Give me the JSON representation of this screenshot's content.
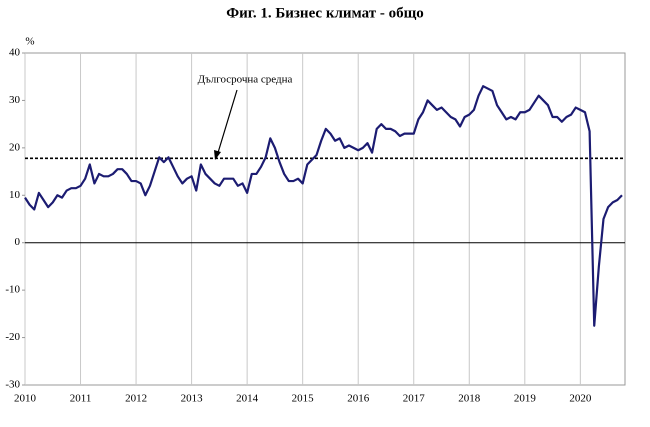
{
  "chart_data": {
    "type": "line",
    "title": "Фиг. 1. Бизнес климат - общо",
    "y_unit": "%",
    "categories": [
      "2010",
      null,
      null,
      null,
      null,
      null,
      null,
      null,
      null,
      null,
      null,
      null,
      "2011",
      null,
      null,
      null,
      null,
      null,
      null,
      null,
      null,
      null,
      null,
      null,
      "2012",
      null,
      null,
      null,
      null,
      null,
      null,
      null,
      null,
      null,
      null,
      null,
      "2013",
      null,
      null,
      null,
      null,
      null,
      null,
      null,
      null,
      null,
      null,
      null,
      "2014",
      null,
      null,
      null,
      null,
      null,
      null,
      null,
      null,
      null,
      null,
      null,
      "2015",
      null,
      null,
      null,
      null,
      null,
      null,
      null,
      null,
      null,
      null,
      null,
      "2016",
      null,
      null,
      null,
      null,
      null,
      null,
      null,
      null,
      null,
      null,
      null,
      "2017",
      null,
      null,
      null,
      null,
      null,
      null,
      null,
      null,
      null,
      null,
      null,
      "2018",
      null,
      null,
      null,
      null,
      null,
      null,
      null,
      null,
      null,
      null,
      null,
      "2019",
      null,
      null,
      null,
      null,
      null,
      null,
      null,
      null,
      null,
      null,
      null,
      "2020",
      null,
      null,
      null,
      null,
      null,
      null,
      null,
      null,
      null
    ],
    "series": [
      {
        "color": "#1c1c72",
        "values": [
          9.5,
          8,
          7,
          10.5,
          9,
          7.5,
          8.5,
          10,
          9.5,
          11,
          11.5,
          11.5,
          12,
          13.5,
          16.5,
          12.5,
          14.5,
          14,
          14,
          14.5,
          15.5,
          15.5,
          14.5,
          13,
          13,
          12.5,
          10,
          12,
          15,
          18,
          17,
          18,
          16,
          14,
          12.5,
          13.5,
          14,
          11,
          16.5,
          14.5,
          13.5,
          12.5,
          12,
          13.5,
          13.5,
          13.5,
          12,
          12.5,
          10.5,
          14.5,
          14.5,
          16,
          18,
          22,
          20,
          17,
          14.5,
          13,
          13,
          13.5,
          12.5,
          16.5,
          17.5,
          18.5,
          21.5,
          24,
          23,
          21.5,
          22,
          20,
          20.5,
          20,
          19.5,
          20,
          21,
          19,
          24,
          25,
          24,
          24,
          23.5,
          22.5,
          23,
          23,
          23,
          26,
          27.5,
          30,
          29,
          28,
          28.5,
          27.5,
          26.5,
          26,
          24.5,
          26.5,
          27,
          28,
          31,
          33,
          32.5,
          32,
          29,
          27.5,
          26,
          26.5,
          26,
          27.5,
          27.5,
          28,
          29.5,
          31,
          30,
          29,
          26.5,
          26.5,
          25.5,
          26.5,
          27,
          28.5,
          28,
          27.5,
          23.5,
          -17.5,
          -5,
          5,
          7.5,
          8.5,
          9,
          10
        ]
      }
    ],
    "reference_line": {
      "value": 17.8,
      "label": "Дългосрочна средна"
    },
    "ylim": [
      -30,
      40
    ],
    "yticks": [
      -30,
      -20,
      -10,
      0,
      10,
      20,
      30,
      40
    ]
  }
}
